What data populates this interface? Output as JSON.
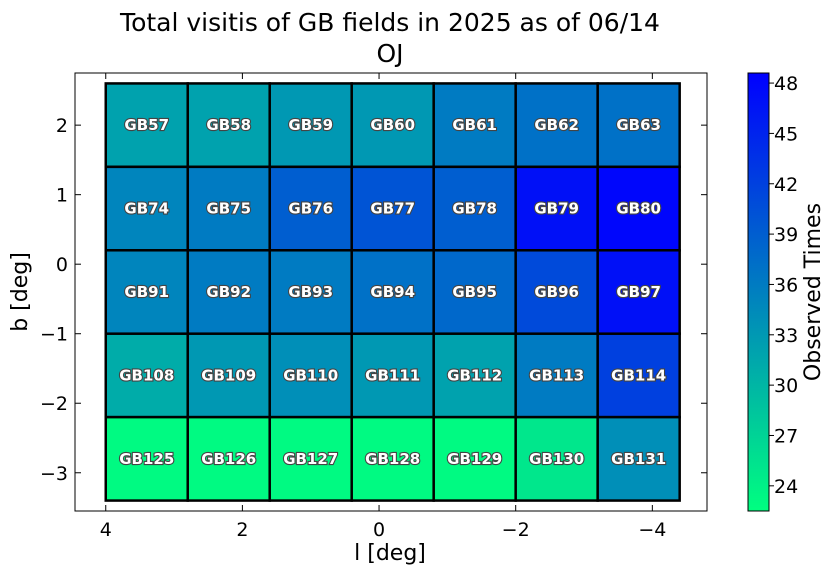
{
  "chart_data": {
    "type": "heatmap",
    "title": "Total visitis of GB fields in 2025 as of 06/14",
    "subtitle": "OJ",
    "xlabel": "l [deg]",
    "ylabel": "b [deg]",
    "xlim": [
      4.45,
      -4.8
    ],
    "ylim": [
      -3.55,
      2.75
    ],
    "x_reversed": true,
    "xticks": [
      4,
      2,
      0,
      -2,
      -4
    ],
    "xtick_labels": [
      "4",
      "2",
      "0",
      "−2",
      "−4"
    ],
    "yticks": [
      2,
      1,
      0,
      -1,
      -2,
      -3
    ],
    "ytick_labels": [
      "2",
      "1",
      "0",
      "−1",
      "−2",
      "−3"
    ],
    "grid": false,
    "colorbar": {
      "label": "Observed Times",
      "range": [
        22.5,
        48.6
      ],
      "ticks": [
        24,
        27,
        30,
        33,
        36,
        39,
        42,
        45,
        48
      ],
      "colors": [
        "#00ff80",
        "#0000ff"
      ]
    },
    "cells": [
      {
        "name": "GB57",
        "l": 3.4,
        "b": 2.0,
        "value": 32
      },
      {
        "name": "GB58",
        "l": 2.2,
        "b": 2.0,
        "value": 32
      },
      {
        "name": "GB59",
        "l": 1.0,
        "b": 2.0,
        "value": 33
      },
      {
        "name": "GB60",
        "l": -0.2,
        "b": 2.0,
        "value": 33
      },
      {
        "name": "GB61",
        "l": -1.4,
        "b": 2.0,
        "value": 36
      },
      {
        "name": "GB62",
        "l": -2.6,
        "b": 2.0,
        "value": 37
      },
      {
        "name": "GB63",
        "l": -3.8,
        "b": 2.0,
        "value": 37
      },
      {
        "name": "GB74",
        "l": 3.4,
        "b": 0.8,
        "value": 35
      },
      {
        "name": "GB75",
        "l": 2.2,
        "b": 0.8,
        "value": 36
      },
      {
        "name": "GB76",
        "l": 1.0,
        "b": 0.8,
        "value": 39
      },
      {
        "name": "GB77",
        "l": -0.2,
        "b": 0.8,
        "value": 40
      },
      {
        "name": "GB78",
        "l": -1.4,
        "b": 0.8,
        "value": 39
      },
      {
        "name": "GB79",
        "l": -2.6,
        "b": 0.8,
        "value": 47
      },
      {
        "name": "GB80",
        "l": -3.8,
        "b": 0.8,
        "value": 48
      },
      {
        "name": "GB91",
        "l": 3.4,
        "b": -0.4,
        "value": 35
      },
      {
        "name": "GB92",
        "l": 2.2,
        "b": -0.4,
        "value": 36
      },
      {
        "name": "GB93",
        "l": 1.0,
        "b": -0.4,
        "value": 36
      },
      {
        "name": "GB94",
        "l": -0.2,
        "b": -0.4,
        "value": 37
      },
      {
        "name": "GB95",
        "l": -1.4,
        "b": -0.4,
        "value": 38
      },
      {
        "name": "GB96",
        "l": -2.6,
        "b": -0.4,
        "value": 41
      },
      {
        "name": "GB97",
        "l": -3.8,
        "b": -0.4,
        "value": 47
      },
      {
        "name": "GB108",
        "l": 3.4,
        "b": -1.6,
        "value": 31
      },
      {
        "name": "GB109",
        "l": 2.2,
        "b": -1.6,
        "value": 33
      },
      {
        "name": "GB110",
        "l": 1.0,
        "b": -1.6,
        "value": 34
      },
      {
        "name": "GB111",
        "l": -0.2,
        "b": -1.6,
        "value": 33
      },
      {
        "name": "GB112",
        "l": -1.4,
        "b": -1.6,
        "value": 32
      },
      {
        "name": "GB113",
        "l": -2.6,
        "b": -1.6,
        "value": 36
      },
      {
        "name": "GB114",
        "l": -3.8,
        "b": -1.6,
        "value": 42
      },
      {
        "name": "GB125",
        "l": 3.4,
        "b": -2.8,
        "value": 23
      },
      {
        "name": "GB126",
        "l": 2.2,
        "b": -2.8,
        "value": 23
      },
      {
        "name": "GB127",
        "l": 1.0,
        "b": -2.8,
        "value": 23
      },
      {
        "name": "GB128",
        "l": -0.2,
        "b": -2.8,
        "value": 23
      },
      {
        "name": "GB129",
        "l": -1.4,
        "b": -2.8,
        "value": 23
      },
      {
        "name": "GB130",
        "l": -2.6,
        "b": -2.8,
        "value": 25
      },
      {
        "name": "GB131",
        "l": -3.8,
        "b": -2.8,
        "value": 34
      }
    ]
  }
}
